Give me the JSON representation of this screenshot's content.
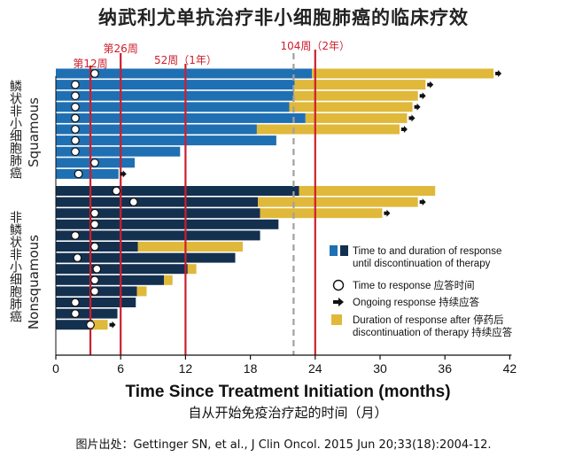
{
  "title": "纳武利尤单抗治疗非小细胞肺癌的临床疗效",
  "credit": "图片出处：Gettinger SN, et al., J Clin Oncol. 2015 Jun 20;33(18):2004-12.",
  "colors": {
    "squamous": "#1f6fb3",
    "nonsquamous": "#14304f",
    "after_discontinuation": "#e0b83a",
    "milestone_line": "#cc1f2d",
    "median_line": "#a0a0a0"
  },
  "chart_data": {
    "type": "bar",
    "orientation": "horizontal",
    "xlabel": "Time Since Treatment Initiation (months)",
    "xlabel_cn": "自从开始免疫治疗起的时间（月）",
    "xlim": [
      0,
      42
    ],
    "xticks": [
      "0",
      "6",
      "12",
      "18",
      "24",
      "30",
      "36",
      "42"
    ],
    "grid": false,
    "milestones": [
      {
        "x": 3.2,
        "label": "第12周"
      },
      {
        "x": 6,
        "label": "第26周"
      },
      {
        "x": 12,
        "label": "52周（1年）"
      },
      {
        "x": 24,
        "label": "104周（2年）"
      }
    ],
    "median_line_x": 22,
    "groups": [
      {
        "label_cn": "鳞状非小细胞肺癌",
        "label_en": "Squamous",
        "series_color": "squamous",
        "rows": [
          {
            "treat": 23.7,
            "after": 40.5,
            "response": 3.6,
            "ongoing": true
          },
          {
            "treat": 22.1,
            "after": 34.2,
            "response": 1.8,
            "ongoing": true
          },
          {
            "treat": 22.0,
            "after": 33.5,
            "response": 1.8,
            "ongoing": true
          },
          {
            "treat": 21.6,
            "after": 33.0,
            "response": 1.8,
            "ongoing": true
          },
          {
            "treat": 23.1,
            "after": 32.5,
            "response": 1.8,
            "ongoing": true
          },
          {
            "treat": 18.6,
            "after": 31.8,
            "response": 1.8,
            "ongoing": true
          },
          {
            "treat": 20.4,
            "after": null,
            "response": 1.8,
            "ongoing": false
          },
          {
            "treat": 11.5,
            "after": null,
            "response": 1.8,
            "ongoing": false
          },
          {
            "treat": 7.3,
            "after": null,
            "response": 3.6,
            "ongoing": false
          },
          {
            "treat": 5.8,
            "after": null,
            "response": 2.1,
            "ongoing": true
          }
        ]
      },
      {
        "label_cn": "非鳞状非小细胞肺癌",
        "label_en": "Nonsquamous",
        "series_color": "nonsquamous",
        "rows": [
          {
            "treat": 22.5,
            "after": 35.1,
            "response": 5.6,
            "ongoing": false
          },
          {
            "treat": 18.7,
            "after": 33.5,
            "response": 7.2,
            "ongoing": true
          },
          {
            "treat": 18.9,
            "after": 30.2,
            "response": 3.6,
            "ongoing": true
          },
          {
            "treat": 20.6,
            "after": null,
            "response": 3.6,
            "ongoing": false
          },
          {
            "treat": 18.9,
            "after": null,
            "response": 1.8,
            "ongoing": false
          },
          {
            "treat": 7.6,
            "after": 17.3,
            "response": 3.6,
            "ongoing": false
          },
          {
            "treat": 16.6,
            "after": null,
            "response": 2.0,
            "ongoing": false
          },
          {
            "treat": 12.2,
            "after": 13.0,
            "response": 3.8,
            "ongoing": false
          },
          {
            "treat": 10.0,
            "after": 10.8,
            "response": 3.6,
            "ongoing": false
          },
          {
            "treat": 7.5,
            "after": 8.4,
            "response": 3.6,
            "ongoing": false
          },
          {
            "treat": 7.4,
            "after": null,
            "response": 1.8,
            "ongoing": false
          },
          {
            "treat": 5.7,
            "after": null,
            "response": 1.8,
            "ongoing": false
          },
          {
            "treat": 3.4,
            "after": 4.8,
            "response": 3.2,
            "ongoing": true
          }
        ]
      }
    ],
    "legend": {
      "placement": "right",
      "items": [
        {
          "kind": "bars",
          "text1": "Time to and duration of response",
          "text2": "until discontinuation of therapy"
        },
        {
          "kind": "circle",
          "text1": "Time to response 应答时间",
          "text2": ""
        },
        {
          "kind": "arrow",
          "text1": "Ongoing response 持续应答",
          "text2": ""
        },
        {
          "kind": "after",
          "text1": "Duration of response after 停药后",
          "text2": "discontinuation of therapy 持续应答"
        }
      ]
    }
  }
}
